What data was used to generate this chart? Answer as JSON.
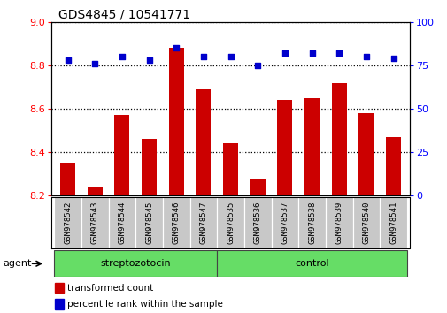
{
  "title": "GDS4845 / 10541771",
  "samples": [
    "GSM978542",
    "GSM978543",
    "GSM978544",
    "GSM978545",
    "GSM978546",
    "GSM978547",
    "GSM978535",
    "GSM978536",
    "GSM978537",
    "GSM978538",
    "GSM978539",
    "GSM978540",
    "GSM978541"
  ],
  "bar_values": [
    8.35,
    8.24,
    8.57,
    8.46,
    8.88,
    8.69,
    8.44,
    8.28,
    8.64,
    8.65,
    8.72,
    8.58,
    8.47
  ],
  "dot_values": [
    78,
    76,
    80,
    78,
    85,
    80,
    80,
    75,
    82,
    82,
    82,
    80,
    79
  ],
  "ylim_left": [
    8.2,
    9.0
  ],
  "ylim_right": [
    0,
    100
  ],
  "yticks_left": [
    8.2,
    8.4,
    8.6,
    8.8,
    9.0
  ],
  "yticks_right": [
    0,
    25,
    50,
    75,
    100
  ],
  "groups": [
    {
      "label": "streptozotocin",
      "start": 0,
      "end": 6
    },
    {
      "label": "control",
      "start": 6,
      "end": 13
    }
  ],
  "agent_label": "agent",
  "bar_color": "#cc0000",
  "dot_color": "#0000cc",
  "legend_bar_label": "transformed count",
  "legend_dot_label": "percentile rank within the sample",
  "bg_plot": "#ffffff",
  "bg_xticklabel": "#c8c8c8",
  "bg_group": "#66dd66",
  "dotted_line_color": "#000000",
  "grid_dotted": true,
  "title_fontsize": 10,
  "tick_fontsize": 8,
  "label_fontsize": 7
}
